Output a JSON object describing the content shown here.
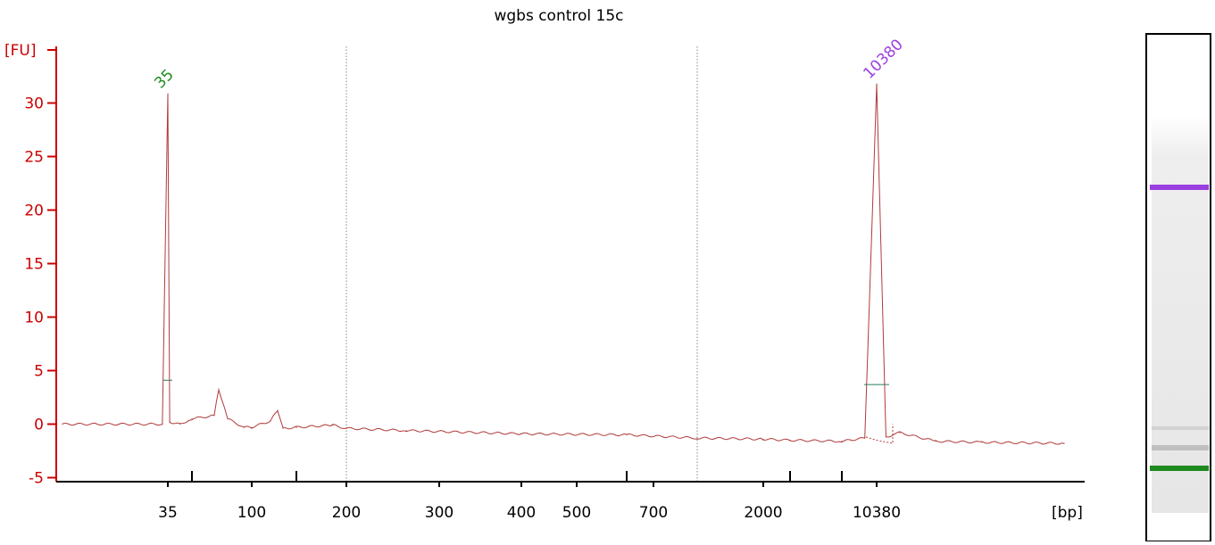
{
  "chart_data": {
    "type": "line",
    "title": "wgbs control 15c",
    "ylabel": "[FU]",
    "xlabel": "[bp]",
    "ylim": [
      -5,
      35
    ],
    "yticks": [
      -5,
      0,
      5,
      10,
      15,
      20,
      25,
      30
    ],
    "x_tick_labels": [
      "35",
      "100",
      "200",
      "300",
      "400",
      "500",
      "700",
      "2000",
      "10380"
    ],
    "dotted_gridlines_at": [
      "200",
      "1000"
    ],
    "x": [
      20,
      34,
      35,
      36,
      42,
      50,
      60,
      66,
      72,
      90,
      100,
      115,
      123,
      130,
      150,
      185,
      200,
      260,
      400,
      600,
      1000,
      2000,
      4000,
      8000,
      9500,
      10380,
      11000,
      12000,
      15000,
      20000,
      40000
    ],
    "values": [
      0.0,
      0.0,
      30.8,
      0.2,
      0.0,
      0.5,
      0.8,
      3.3,
      0.5,
      -0.3,
      -0.3,
      0.3,
      1.3,
      -0.4,
      -0.3,
      -0.1,
      -0.4,
      -0.6,
      -0.9,
      -1.0,
      -1.3,
      -1.4,
      -1.5,
      -1.6,
      -1.3,
      31.7,
      -1.2,
      -0.8,
      -1.6,
      -1.7,
      -1.8
    ],
    "peaks": [
      {
        "label": "35",
        "x": 35,
        "height": 30.8,
        "half_height": 4.1,
        "color": "#1e8a1e"
      },
      {
        "label": "10380",
        "x": 10380,
        "height": 31.7,
        "half_height": 3.7,
        "color": "#9b3fe0"
      }
    ],
    "colors": {
      "axis": "#cc0000",
      "trace": "#b03a3a",
      "grid": "#888888",
      "lower_marker": "#1e8a1e",
      "upper_marker": "#9b3fe0"
    }
  },
  "gel": {
    "bands": [
      {
        "name": "upper-marker",
        "color": "#9b3fe0"
      },
      {
        "name": "lower-marker",
        "color": "#1e8a1e"
      }
    ]
  }
}
